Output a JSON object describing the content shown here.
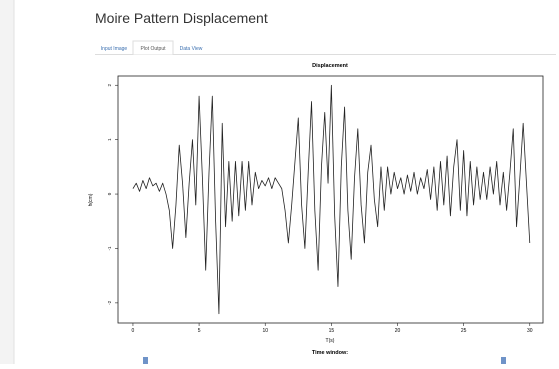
{
  "header": {
    "title": "Moire Pattern Displacement"
  },
  "tabs": [
    "Input Image",
    "Plot Output",
    "Data View"
  ],
  "active_tab": 1,
  "chart_data": {
    "type": "line",
    "title": "Displacement",
    "x_label": "T(s)",
    "y_label": "h(cm)",
    "x": [
      0,
      0.25,
      0.5,
      0.75,
      1,
      1.25,
      1.5,
      1.75,
      2,
      2.25,
      2.5,
      2.75,
      3,
      3.25,
      3.5,
      3.75,
      4,
      4.25,
      4.5,
      4.75,
      5,
      5.25,
      5.5,
      5.75,
      6,
      6.25,
      6.5,
      6.75,
      7,
      7.25,
      7.5,
      7.75,
      8,
      8.25,
      8.5,
      8.75,
      9,
      9.25,
      9.5,
      9.75,
      10,
      10.25,
      10.5,
      10.75,
      11,
      11.25,
      11.5,
      11.75,
      12,
      12.25,
      12.5,
      12.75,
      13,
      13.25,
      13.5,
      13.75,
      14,
      14.25,
      14.5,
      14.75,
      15,
      15.25,
      15.5,
      15.75,
      16,
      16.25,
      16.5,
      16.75,
      17,
      17.25,
      17.5,
      17.75,
      18,
      18.25,
      18.5,
      18.75,
      19,
      19.25,
      19.5,
      19.75,
      20,
      20.25,
      20.5,
      20.75,
      21,
      21.25,
      21.5,
      21.75,
      22,
      22.25,
      22.5,
      22.75,
      23,
      23.25,
      23.5,
      23.75,
      24,
      24.25,
      24.5,
      24.75,
      25,
      25.25,
      25.5,
      25.75,
      26,
      26.25,
      26.5,
      26.75,
      27,
      27.25,
      27.5,
      27.75,
      28,
      28.25,
      28.5,
      28.75,
      29,
      29.25,
      29.5,
      29.75,
      30
    ],
    "series": [
      {
        "color": "#222222",
        "values": [
          0.1,
          0.2,
          0.05,
          0.25,
          0.1,
          0.3,
          0.15,
          0.2,
          0.05,
          0.2,
          0.0,
          -0.3,
          -1.0,
          -0.2,
          0.9,
          0.2,
          -0.8,
          0.2,
          1.0,
          -0.2,
          1.8,
          0.3,
          -1.4,
          0.4,
          1.8,
          -0.5,
          -2.2,
          1.3,
          -0.6,
          0.6,
          -0.5,
          0.6,
          -0.4,
          0.6,
          -0.3,
          0.6,
          -0.2,
          0.4,
          0.1,
          0.25,
          0.15,
          0.3,
          0.1,
          0.3,
          0.2,
          0.1,
          -0.3,
          -0.9,
          -0.2,
          0.6,
          1.4,
          -0.2,
          -1.0,
          0.4,
          1.7,
          -0.3,
          -1.4,
          0.5,
          1.5,
          0.2,
          2.0,
          -0.4,
          -1.7,
          0.5,
          1.6,
          -0.3,
          -1.2,
          0.3,
          1.2,
          -0.2,
          -0.9,
          0.4,
          0.9,
          -0.1,
          -0.6,
          0.5,
          -0.3,
          0.5,
          0.0,
          0.4,
          0.1,
          0.3,
          0.0,
          0.35,
          0.05,
          0.4,
          0.0,
          0.3,
          0.1,
          0.45,
          -0.1,
          0.5,
          -0.3,
          0.6,
          -0.2,
          0.7,
          -0.4,
          0.5,
          1.0,
          -0.3,
          0.8,
          -0.4,
          0.6,
          -0.2,
          0.5,
          -0.1,
          0.4,
          -0.1,
          0.5,
          0.0,
          0.6,
          -0.2,
          0.4,
          -0.3,
          0.4,
          1.2,
          -0.6,
          0.3,
          1.3,
          0.2,
          -0.9
        ]
      }
    ],
    "xlim": [
      -1.13,
      31.0
    ],
    "ylim": [
      -2.37,
      2.17
    ],
    "xticks": [
      0,
      5,
      10,
      15,
      20,
      25,
      30
    ],
    "yticks": [
      -2,
      -1,
      0,
      1,
      2
    ]
  },
  "slider_label": "Time window:"
}
